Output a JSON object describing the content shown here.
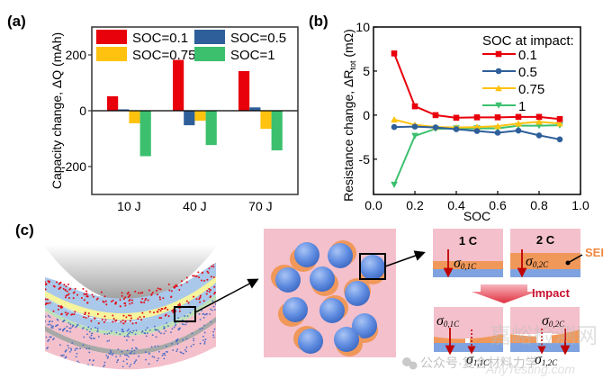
{
  "panel_labels": {
    "a": "(a)",
    "b": "(b)",
    "c": "(c)"
  },
  "chart_data": [
    {
      "id": "a",
      "type": "bar",
      "title": "",
      "xlabel": "",
      "ylabel": "Capacity change, ΔQ (mAh)",
      "categories": [
        "10 J",
        "40 J",
        "70 J"
      ],
      "series": [
        {
          "name": "SOC=0.1",
          "color": "#e8000b",
          "values": [
            52,
            182,
            142
          ]
        },
        {
          "name": "SOC=0.5",
          "color": "#2f5f9a",
          "values": [
            5,
            -52,
            12
          ]
        },
        {
          "name": "SOC=0.75",
          "color": "#ffc20e",
          "values": [
            -45,
            -36,
            -65
          ]
        },
        {
          "name": "SOC=1",
          "color": "#3cc06e",
          "values": [
            -163,
            -123,
            -142
          ]
        }
      ],
      "ylim": [
        -300,
        300
      ],
      "yticks": [
        -200,
        0,
        200
      ],
      "ytick_labels": [
        "-200",
        "0",
        "200"
      ],
      "grid": false,
      "zero_line": true,
      "legend": {
        "placement": "top",
        "columns": 2
      }
    },
    {
      "id": "b",
      "type": "line",
      "title": "",
      "xlabel": "SOC",
      "ylabel": "Resistance change, ΔR",
      "ylabel_sub": "tot",
      "ylabel_unit": " (mΩ)",
      "x": [
        0.1,
        0.2,
        0.3,
        0.4,
        0.5,
        0.6,
        0.7,
        0.8,
        0.9
      ],
      "series": [
        {
          "name": "0.1",
          "color": "#e8000b",
          "marker": "square",
          "values": [
            7.0,
            1.0,
            0.0,
            -0.3,
            -0.25,
            -0.25,
            -0.2,
            -0.2,
            -0.45
          ]
        },
        {
          "name": "0.5",
          "color": "#2f5f9a",
          "marker": "circle",
          "values": [
            -1.35,
            -1.3,
            -1.4,
            -1.6,
            -1.8,
            -2.0,
            -1.75,
            -2.3,
            -2.75
          ]
        },
        {
          "name": "0.75",
          "color": "#ffc20e",
          "marker": "triangle-up",
          "values": [
            -0.5,
            -1.1,
            -1.35,
            -1.4,
            -1.35,
            -1.25,
            -0.95,
            -0.75,
            -0.95
          ]
        },
        {
          "name": "1",
          "color": "#3cc06e",
          "marker": "triangle-down",
          "values": [
            -7.9,
            -2.35,
            -1.55,
            -1.5,
            -1.5,
            -1.5,
            -1.2,
            -1.2,
            -1.15
          ]
        }
      ],
      "xlim": [
        0.0,
        1.0
      ],
      "ylim": [
        -9,
        10
      ],
      "xticks": [
        0.0,
        0.2,
        0.4,
        0.6,
        0.8,
        1.0
      ],
      "xtick_labels": [
        "0.0",
        "0.2",
        "0.4",
        "0.6",
        "0.8",
        "1.0"
      ],
      "yticks": [
        -5,
        0,
        5,
        10
      ],
      "ytick_labels": [
        "-5",
        "0",
        "5",
        "10"
      ],
      "grid": false,
      "legend": {
        "title": "SOC at impact:",
        "placement": "top-right"
      }
    }
  ],
  "schematic": {
    "callouts": {
      "c1_label": "1 C",
      "c2_label": "2 C",
      "sei_label": "SEI",
      "impact_label": "Impact",
      "sigma": "σ",
      "sig_01c": "0,1C",
      "sig_02c": "0,2C",
      "sig_11c": "1,1C",
      "sig_12c": "1,2C"
    },
    "colors": {
      "pink": "#f4c0cb",
      "sei_orange": "#f0985a",
      "blue_layer": "#7fa3e0",
      "arrow_red": "#c00000",
      "impact_red": "#c8102e",
      "sei_text": "#f0883e"
    }
  },
  "watermark": {
    "text1": "公众号·复合材料力学",
    "text2": "嘉峪检测网",
    "text3": "AnyTesting.com"
  }
}
